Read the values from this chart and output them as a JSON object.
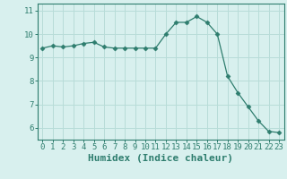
{
  "x": [
    0,
    1,
    2,
    3,
    4,
    5,
    6,
    7,
    8,
    9,
    10,
    11,
    12,
    13,
    14,
    15,
    16,
    17,
    18,
    19,
    20,
    21,
    22,
    23
  ],
  "y": [
    9.4,
    9.5,
    9.45,
    9.5,
    9.6,
    9.65,
    9.45,
    9.4,
    9.4,
    9.4,
    9.4,
    9.4,
    10.0,
    10.5,
    10.5,
    10.75,
    10.5,
    10.0,
    8.2,
    7.5,
    6.9,
    6.3,
    5.85,
    5.8
  ],
  "line_color": "#2e7d6e",
  "marker": "D",
  "marker_size": 2.5,
  "bg_color": "#d8f0ee",
  "grid_color": "#b8dcd8",
  "xlabel": "Humidex (Indice chaleur)",
  "xlabel_fontsize": 8,
  "tick_fontsize": 6.5,
  "ylim": [
    5.5,
    11.3
  ],
  "xlim": [
    -0.5,
    23.5
  ],
  "yticks": [
    6,
    7,
    8,
    9,
    10,
    11
  ],
  "xticks": [
    0,
    1,
    2,
    3,
    4,
    5,
    6,
    7,
    8,
    9,
    10,
    11,
    12,
    13,
    14,
    15,
    16,
    17,
    18,
    19,
    20,
    21,
    22,
    23
  ]
}
